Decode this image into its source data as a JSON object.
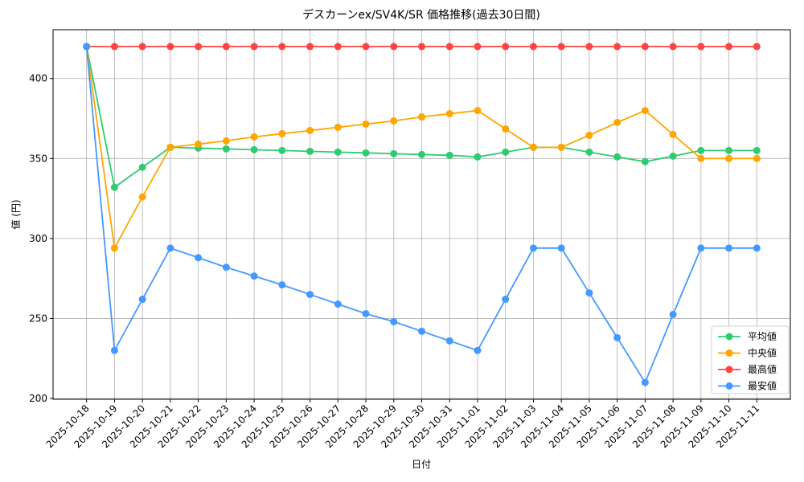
{
  "chart_data": {
    "type": "line",
    "title": "デスカーンex/SV4K/SR 価格推移(過去30日間)",
    "x_label": "日付",
    "y_label": "値 (円)",
    "categories": [
      "2025-10-18",
      "2025-10-19",
      "2025-10-20",
      "2025-10-21",
      "2025-10-22",
      "2025-10-23",
      "2025-10-24",
      "2025-10-25",
      "2025-10-26",
      "2025-10-27",
      "2025-10-28",
      "2025-10-29",
      "2025-10-30",
      "2025-10-31",
      "2025-11-01",
      "2025-11-02",
      "2025-11-03",
      "2025-11-04",
      "2025-11-05",
      "2025-11-06",
      "2025-11-07",
      "2025-11-08",
      "2025-11-09",
      "2025-11-10",
      "2025-11-11"
    ],
    "series": [
      {
        "name": "平均値",
        "color": "#2ecc71",
        "values": [
          420,
          332,
          344.5,
          357,
          356.5,
          356,
          355.5,
          355,
          354.5,
          354,
          353.5,
          353,
          352.5,
          352,
          351,
          354,
          357,
          357,
          354,
          351,
          348,
          351.5,
          355,
          355,
          355
        ]
      },
      {
        "name": "中央値",
        "color": "#ffa500",
        "values": [
          420,
          294,
          326,
          357,
          359,
          361,
          363.5,
          365.5,
          367.5,
          369.5,
          371.5,
          373.5,
          376,
          378,
          380,
          368.5,
          357,
          357,
          364.5,
          372.5,
          380,
          365,
          350,
          350,
          350
        ]
      },
      {
        "name": "最高値",
        "color": "#ff4444",
        "values": [
          420,
          420,
          420,
          420,
          420,
          420,
          420,
          420,
          420,
          420,
          420,
          420,
          420,
          420,
          420,
          420,
          420,
          420,
          420,
          420,
          420,
          420,
          420,
          420,
          420
        ]
      },
      {
        "name": "最安値",
        "color": "#4499ff",
        "values": [
          420,
          230,
          262,
          294,
          288,
          282,
          276.5,
          271,
          265,
          259,
          253,
          248,
          242,
          236,
          230,
          262,
          294,
          294,
          266,
          238,
          210,
          252.5,
          294,
          294,
          294
        ]
      }
    ],
    "ylim": [
      199.5,
      430.5
    ],
    "yticks": [
      200,
      250,
      300,
      350,
      400
    ],
    "grid": true,
    "legend": "lower right"
  }
}
